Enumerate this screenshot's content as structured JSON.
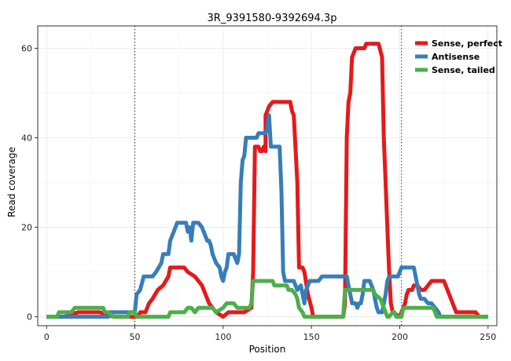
{
  "chart_data": {
    "type": "line",
    "title": "3R_9391580-9392694.3p",
    "xlabel": "Position",
    "ylabel": "Read coverage",
    "xlim": [
      -5,
      255
    ],
    "ylim": [
      -2,
      65
    ],
    "x_ticks": [
      0,
      50,
      100,
      150,
      200,
      250
    ],
    "y_ticks": [
      0,
      20,
      40,
      60
    ],
    "grid": true,
    "legend_position": "top-right",
    "reference_lines": [
      50,
      201
    ],
    "series": [
      {
        "name": "Sense, perfect",
        "color": "#e41a1c",
        "points": [
          [
            0,
            0
          ],
          [
            10,
            0
          ],
          [
            18,
            1
          ],
          [
            30,
            1
          ],
          [
            38,
            0
          ],
          [
            52,
            0
          ],
          [
            53,
            1
          ],
          [
            56,
            1
          ],
          [
            58,
            3
          ],
          [
            60,
            4
          ],
          [
            63,
            6
          ],
          [
            66,
            7
          ],
          [
            69,
            9
          ],
          [
            70,
            11
          ],
          [
            78,
            11
          ],
          [
            80,
            10
          ],
          [
            84,
            9
          ],
          [
            88,
            7
          ],
          [
            90,
            5
          ],
          [
            92,
            3
          ],
          [
            96,
            1
          ],
          [
            100,
            0
          ],
          [
            103,
            1
          ],
          [
            112,
            1
          ],
          [
            116,
            2
          ],
          [
            117,
            10
          ],
          [
            118,
            38
          ],
          [
            120,
            38
          ],
          [
            121,
            37
          ],
          [
            122,
            37
          ],
          [
            123,
            38
          ],
          [
            124,
            37
          ],
          [
            124,
            45
          ],
          [
            126,
            47
          ],
          [
            128,
            48
          ],
          [
            138,
            48
          ],
          [
            139,
            46
          ],
          [
            140,
            45
          ],
          [
            142,
            30
          ],
          [
            143,
            11
          ],
          [
            145,
            11
          ],
          [
            146,
            10
          ],
          [
            148,
            5
          ],
          [
            150,
            2
          ],
          [
            151,
            0
          ],
          [
            168,
            0
          ],
          [
            169,
            3
          ],
          [
            170,
            40
          ],
          [
            171,
            48
          ],
          [
            172,
            50
          ],
          [
            173,
            58
          ],
          [
            175,
            60
          ],
          [
            178,
            60
          ],
          [
            180,
            60
          ],
          [
            181,
            61
          ],
          [
            188,
            61
          ],
          [
            190,
            58
          ],
          [
            191,
            40
          ],
          [
            192,
            30
          ],
          [
            193,
            20
          ],
          [
            194,
            10
          ],
          [
            195,
            3
          ],
          [
            196,
            1
          ],
          [
            200,
            0
          ],
          [
            202,
            2
          ],
          [
            203,
            3
          ],
          [
            204,
            5
          ],
          [
            205,
            6
          ],
          [
            207,
            6
          ],
          [
            208,
            7
          ],
          [
            210,
            7
          ],
          [
            212,
            6
          ],
          [
            214,
            6
          ],
          [
            216,
            7
          ],
          [
            218,
            8
          ],
          [
            225,
            8
          ],
          [
            226,
            7
          ],
          [
            228,
            5
          ],
          [
            230,
            3
          ],
          [
            232,
            1
          ],
          [
            243,
            1
          ],
          [
            245,
            0
          ],
          [
            250,
            0
          ]
        ]
      },
      {
        "name": "Antisense",
        "color": "#377eb8",
        "points": [
          [
            0,
            0
          ],
          [
            35,
            0
          ],
          [
            36,
            1
          ],
          [
            50,
            1
          ],
          [
            51,
            5
          ],
          [
            53,
            6
          ],
          [
            55,
            9
          ],
          [
            60,
            9
          ],
          [
            62,
            10
          ],
          [
            65,
            12
          ],
          [
            66,
            14
          ],
          [
            69,
            14
          ],
          [
            70,
            17
          ],
          [
            72,
            19
          ],
          [
            74,
            21
          ],
          [
            79,
            21
          ],
          [
            80,
            19
          ],
          [
            81,
            20
          ],
          [
            82,
            17
          ],
          [
            83,
            21
          ],
          [
            86,
            21
          ],
          [
            88,
            20
          ],
          [
            89,
            19
          ],
          [
            90,
            18
          ],
          [
            91,
            17
          ],
          [
            92,
            17
          ],
          [
            93,
            16
          ],
          [
            94,
            14
          ],
          [
            96,
            12
          ],
          [
            98,
            11
          ],
          [
            99,
            9
          ],
          [
            100,
            8
          ],
          [
            101,
            10
          ],
          [
            102,
            11
          ],
          [
            103,
            14
          ],
          [
            106,
            14
          ],
          [
            107,
            13
          ],
          [
            108,
            12
          ],
          [
            109,
            14
          ],
          [
            110,
            30
          ],
          [
            111,
            35
          ],
          [
            112,
            36
          ],
          [
            113,
            40
          ],
          [
            119,
            40
          ],
          [
            120,
            41
          ],
          [
            122,
            41
          ],
          [
            124,
            41
          ],
          [
            125,
            42
          ],
          [
            126,
            45
          ],
          [
            127,
            38
          ],
          [
            132,
            38
          ],
          [
            133,
            28
          ],
          [
            134,
            10
          ],
          [
            135,
            8
          ],
          [
            140,
            8
          ],
          [
            141,
            7
          ],
          [
            142,
            6
          ],
          [
            144,
            7
          ],
          [
            145,
            5
          ],
          [
            146,
            3
          ],
          [
            147,
            6
          ],
          [
            148,
            7
          ],
          [
            149,
            8
          ],
          [
            154,
            8
          ],
          [
            156,
            9
          ],
          [
            170,
            9
          ],
          [
            171,
            7
          ],
          [
            172,
            5
          ],
          [
            173,
            3
          ],
          [
            175,
            3
          ],
          [
            176,
            2
          ],
          [
            177,
            3
          ],
          [
            178,
            3
          ],
          [
            179,
            5
          ],
          [
            180,
            8
          ],
          [
            183,
            8
          ],
          [
            185,
            6
          ],
          [
            186,
            4
          ],
          [
            187,
            2
          ],
          [
            188,
            1
          ],
          [
            190,
            1
          ],
          [
            191,
            3
          ],
          [
            192,
            5
          ],
          [
            193,
            8
          ],
          [
            194,
            9
          ],
          [
            199,
            9
          ],
          [
            200,
            10
          ],
          [
            201,
            11
          ],
          [
            208,
            11
          ],
          [
            209,
            9
          ],
          [
            210,
            7
          ],
          [
            211,
            5
          ],
          [
            212,
            4
          ],
          [
            214,
            4
          ],
          [
            216,
            3
          ],
          [
            218,
            3
          ],
          [
            220,
            2
          ],
          [
            222,
            1
          ],
          [
            223,
            0
          ],
          [
            250,
            0
          ]
        ]
      },
      {
        "name": "Sense, tailed",
        "color": "#4daf4a",
        "points": [
          [
            0,
            0
          ],
          [
            6,
            0
          ],
          [
            7,
            1
          ],
          [
            14,
            1
          ],
          [
            16,
            2
          ],
          [
            32,
            2
          ],
          [
            33,
            1
          ],
          [
            35,
            1
          ],
          [
            38,
            0
          ],
          [
            46,
            0
          ],
          [
            47,
            1
          ],
          [
            50,
            1
          ],
          [
            51,
            0
          ],
          [
            69,
            0
          ],
          [
            70,
            1
          ],
          [
            78,
            1
          ],
          [
            80,
            2
          ],
          [
            82,
            2
          ],
          [
            84,
            1
          ],
          [
            86,
            2
          ],
          [
            94,
            2
          ],
          [
            96,
            1
          ],
          [
            100,
            2
          ],
          [
            102,
            3
          ],
          [
            106,
            3
          ],
          [
            108,
            2
          ],
          [
            115,
            2
          ],
          [
            116,
            3
          ],
          [
            117,
            8
          ],
          [
            128,
            8
          ],
          [
            129,
            7
          ],
          [
            136,
            7
          ],
          [
            137,
            6
          ],
          [
            139,
            6
          ],
          [
            141,
            5
          ],
          [
            142,
            4
          ],
          [
            143,
            2
          ],
          [
            145,
            1
          ],
          [
            146,
            0
          ],
          [
            168,
            0
          ],
          [
            169,
            6
          ],
          [
            185,
            6
          ],
          [
            186,
            5
          ],
          [
            189,
            4
          ],
          [
            190,
            3
          ],
          [
            191,
            2
          ],
          [
            192,
            1
          ],
          [
            193,
            0
          ],
          [
            194,
            0
          ],
          [
            196,
            1
          ],
          [
            197,
            1
          ],
          [
            198,
            0
          ],
          [
            201,
            0
          ],
          [
            202,
            2
          ],
          [
            219,
            2
          ],
          [
            220,
            1
          ],
          [
            221,
            0
          ],
          [
            250,
            0
          ]
        ]
      }
    ]
  }
}
